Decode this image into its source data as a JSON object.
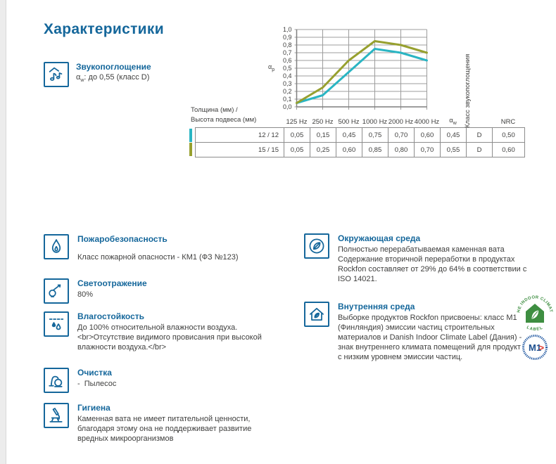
{
  "page": {
    "title": "Характеристики"
  },
  "sound": {
    "heading": "Звукопоглощение",
    "alpha_base": "α",
    "alpha_sub": "w",
    "value_rest": ": до 0,55 (класс D)"
  },
  "chart_data": {
    "type": "line",
    "x_categories": [
      "125 Hz",
      "250 Hz",
      "500 Hz",
      "1000 Hz",
      "2000 Hz",
      "4000 Hz"
    ],
    "ylim": [
      0,
      1
    ],
    "ytick_labels": [
      "1,0",
      "0,9",
      "0,8",
      "0,7",
      "0,6",
      "0,5",
      "0,4",
      "0,3",
      "0,2",
      "0,1",
      "0,0"
    ],
    "ylabel_base": "α",
    "ylabel_sub": "p",
    "grid": true,
    "grid_color": "#9c9c9c",
    "axis_color": "#7f7f7f",
    "text_color": "#3e3e3d",
    "legend_position": "none",
    "series": [
      {
        "name": "12 / 12",
        "color": "#2ab5c3",
        "values": [
          0.05,
          0.15,
          0.45,
          0.75,
          0.7,
          0.6
        ]
      },
      {
        "name": "15 / 15",
        "color": "#97a02f",
        "values": [
          0.05,
          0.25,
          0.6,
          0.85,
          0.8,
          0.7
        ]
      }
    ]
  },
  "table": {
    "row_label_line1": "Толщина (мм) /",
    "row_label_line2": "Высота подвеса (мм)",
    "alpha_header_base": "α",
    "alpha_header_sub": "w",
    "class_header": "Класс звукопоглощения",
    "nrc_header": "NRC",
    "rows": [
      {
        "label": "12 / 12",
        "values": [
          "0,05",
          "0,15",
          "0,45",
          "0,75",
          "0,70",
          "0,60"
        ],
        "alpha_w": "0,45",
        "abs_class": "D",
        "nrc": "0,50"
      },
      {
        "label": "15 / 15",
        "values": [
          "0,05",
          "0,25",
          "0,60",
          "0,85",
          "0,80",
          "0,70"
        ],
        "alpha_w": "0,55",
        "abs_class": "D",
        "nrc": "0,60"
      }
    ]
  },
  "features_left": [
    {
      "icon": "flame-icon",
      "heading": "Пожаробезопасность",
      "body": "Класс пожарной опасности - КМ1 (ФЗ №123)"
    },
    {
      "icon": "lightbulb-icon",
      "heading": "Светоотражение",
      "body": "80%"
    },
    {
      "icon": "water-drops-icon",
      "heading": "Влагостойкость",
      "body": "До 100% относительной влажности воздуха.<br>Отсутствие видимого провисания при высокой влажности воздуха.</br>"
    },
    {
      "icon": "vacuum-cleaner-icon",
      "heading": "Очистка",
      "body": "-  Пылесос"
    },
    {
      "icon": "microscope-icon",
      "heading": "Гигиена",
      "body": "Каменная вата не имеет питательной ценности, благодаря этому она не поддерживает развитие вредных микроорганизмов"
    }
  ],
  "features_right": [
    {
      "icon": "leaf-circle-icon",
      "heading": "Окружающая среда",
      "body": "Полностью перерабатываемая каменная вата Содержание вторичной переработки в продуктах Rockfon составляет от 29% до 64% в соответствии с ISO 14021."
    },
    {
      "icon": "house-leaf-icon",
      "heading": "Внутренняя среда",
      "body": "Выборке продуктов Rockfon присвоены: класс M1 (Финляндия) эмиссии частиц строительных материалов и Danish Indoor Climate Label (Дания) - знак внутреннего климата помещений для продуктов с низким уровнем эмиссии частиц."
    }
  ],
  "certifications": {
    "indoor_climate_label": {
      "arc_text_top": "THE INDOOR CLIMATE",
      "arc_text_bottom": "LABEL",
      "color": "#3e8e41"
    },
    "m1": {
      "label": "M1",
      "arrow": ">",
      "text_color": "#1c4f8f",
      "ring_color": "#2a5fa5",
      "arrow_color": "#e0392e"
    }
  }
}
